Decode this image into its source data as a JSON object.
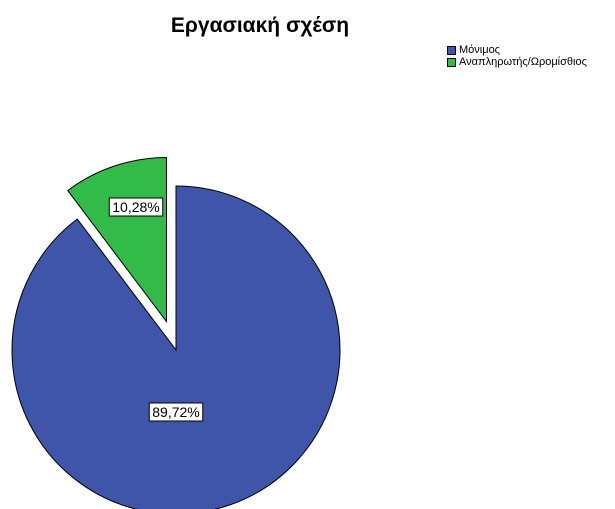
{
  "chart_data": {
    "type": "pie",
    "title": "Εργασιακή σχέση",
    "categories": [
      "Μόνιμος",
      "Αναπληρωτής/Ωρομίσθιος"
    ],
    "values": [
      89.72,
      10.28
    ],
    "labels": [
      "89,72%",
      "10,28%"
    ],
    "colors": [
      "#3f55aa",
      "#33bb4a"
    ],
    "exploded": [
      false,
      true
    ],
    "legend_position": "top-right"
  }
}
